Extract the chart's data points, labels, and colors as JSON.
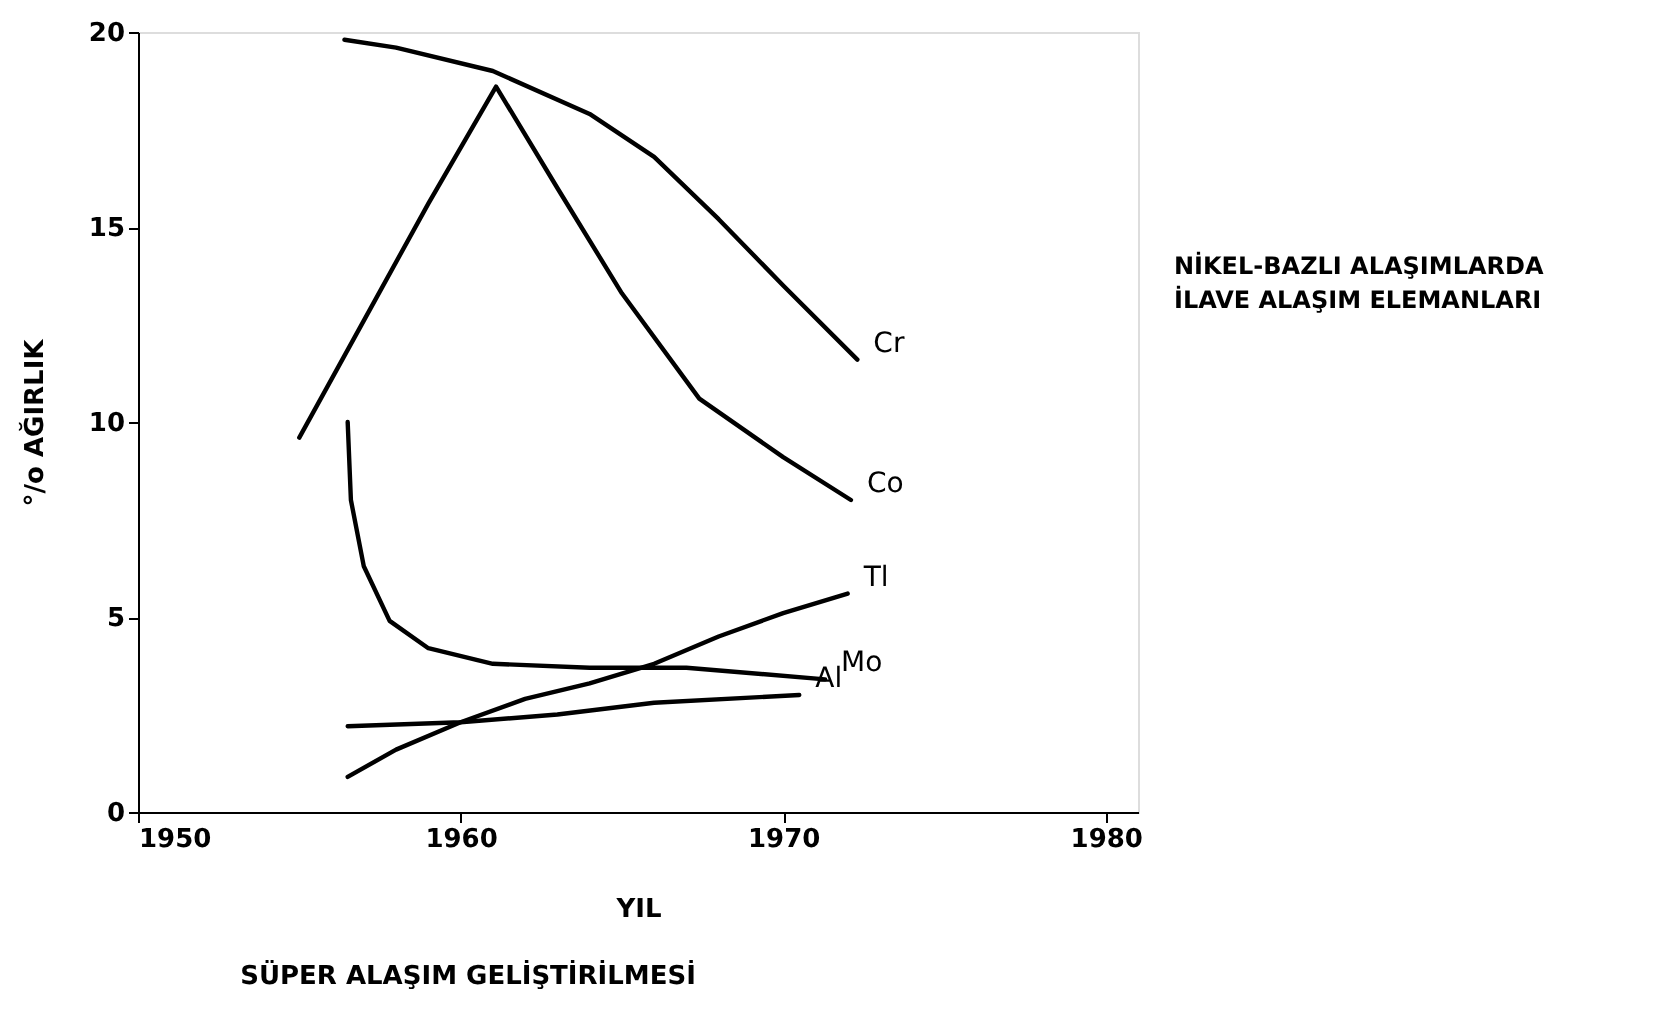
{
  "chart_data": {
    "type": "line",
    "title": [
      "NİKEL-BAZLI ALAŞIMLARDA",
      "İLAVE ALAŞIM ELEMANLARI"
    ],
    "xlabel": "YIL",
    "ylabel": "°/o AĞIRLIK",
    "annotations": [
      "SÜPER ALAŞIM GELİŞTİRİLMESİ"
    ],
    "xlim": [
      1950,
      1981
    ],
    "xticks": [
      1950,
      1960,
      1970,
      1980
    ],
    "ylim": [
      0,
      20
    ],
    "yticks": [
      0,
      5,
      10,
      15,
      20
    ],
    "marker": "none",
    "line_style": "solid",
    "series": [
      {
        "name": "Cr",
        "color": "#000000",
        "x": [
          1956.4,
          1958,
          1961,
          1964,
          1966,
          1968,
          1970,
          1972.3
        ],
        "values": [
          19.8,
          19.6,
          19.0,
          17.9,
          16.8,
          15.2,
          13.5,
          11.6
        ]
      },
      {
        "name": "Co",
        "color": "#000000",
        "x": [
          1955,
          1957,
          1959,
          1961.1,
          1963,
          1965,
          1967.4,
          1970,
          1972.1
        ],
        "values": [
          9.6,
          12.6,
          15.6,
          18.6,
          16.0,
          13.3,
          10.6,
          9.1,
          8.0
        ]
      },
      {
        "name": "Tl",
        "color": "#000000",
        "x": [
          1956.5,
          1958,
          1960,
          1962,
          1964,
          1966,
          1968,
          1970,
          1972
        ],
        "values": [
          0.9,
          1.6,
          2.3,
          2.9,
          3.3,
          3.8,
          4.5,
          5.1,
          5.6
        ]
      },
      {
        "name": "Mo",
        "color": "#000000",
        "x": [
          1956.5,
          1956.6,
          1957,
          1957.8,
          1959,
          1961,
          1964,
          1967,
          1971.3
        ],
        "values": [
          10.0,
          8.0,
          6.3,
          4.9,
          4.2,
          3.8,
          3.7,
          3.7,
          3.4
        ]
      },
      {
        "name": "Al",
        "color": "#000000",
        "x": [
          1956.5,
          1960,
          1963,
          1966,
          1970.5
        ],
        "values": [
          2.2,
          2.3,
          2.5,
          2.8,
          3.0
        ]
      }
    ]
  }
}
